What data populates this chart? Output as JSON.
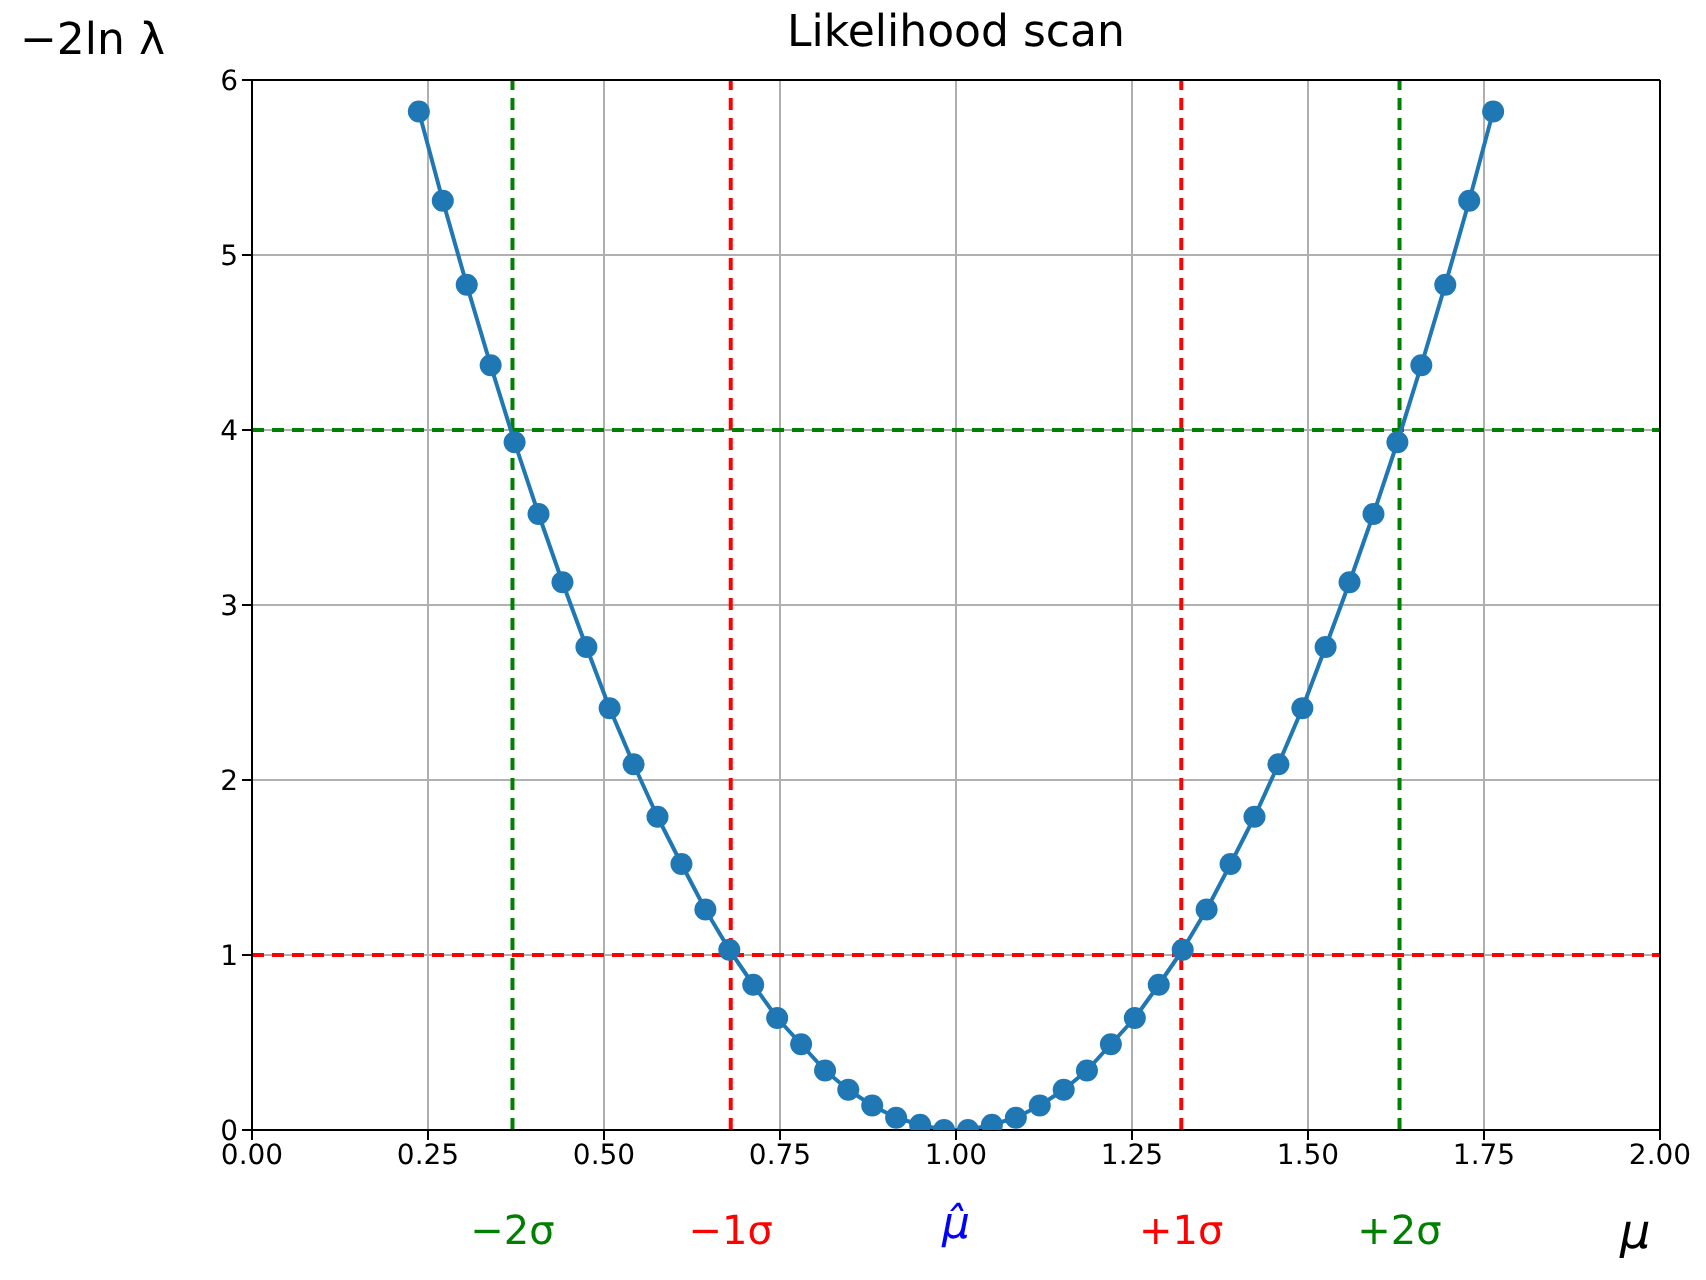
{
  "chart_data": {
    "type": "line",
    "title": "Likelihood scan",
    "xlabel": "μ",
    "ylabel": "−2ln λ",
    "x": [
      0.237,
      0.271,
      0.305,
      0.339,
      0.373,
      0.407,
      0.441,
      0.475,
      0.508,
      0.542,
      0.576,
      0.61,
      0.644,
      0.678,
      0.712,
      0.746,
      0.78,
      0.814,
      0.847,
      0.881,
      0.915,
      0.949,
      0.983,
      1.017,
      1.051,
      1.085,
      1.119,
      1.153,
      1.186,
      1.22,
      1.254,
      1.288,
      1.322,
      1.356,
      1.39,
      1.424,
      1.458,
      1.492,
      1.525,
      1.559,
      1.593,
      1.627,
      1.661,
      1.695,
      1.729,
      1.763
    ],
    "series": [
      {
        "color": "#1f77b4",
        "values": [
          5.82,
          5.31,
          4.83,
          4.37,
          3.93,
          3.52,
          3.13,
          2.76,
          2.41,
          2.09,
          1.79,
          1.52,
          1.26,
          1.03,
          0.83,
          0.64,
          0.49,
          0.34,
          0.23,
          0.14,
          0.07,
          0.03,
          0.0,
          0.0,
          0.03,
          0.07,
          0.14,
          0.23,
          0.34,
          0.49,
          0.64,
          0.83,
          1.03,
          1.26,
          1.52,
          1.79,
          2.09,
          2.41,
          2.76,
          3.13,
          3.52,
          3.93,
          4.37,
          4.83,
          5.31,
          5.82
        ]
      }
    ],
    "xlim": [
      0,
      2
    ],
    "xticks": [
      {
        "value": 0,
        "label": "0.00"
      },
      {
        "value": 0.25,
        "label": "0.25"
      },
      {
        "value": 0.5,
        "label": "0.50"
      },
      {
        "value": 0.75,
        "label": "0.75"
      },
      {
        "value": 1,
        "label": "1.00"
      },
      {
        "value": 1.25,
        "label": "1.25"
      },
      {
        "value": 1.5,
        "label": "1.50"
      },
      {
        "value": 1.75,
        "label": "1.75"
      },
      {
        "value": 2,
        "label": "2.00"
      }
    ],
    "ylim": [
      0,
      6
    ],
    "yticks": [
      0,
      1,
      2,
      3,
      4,
      5,
      6
    ],
    "ref_lines": [
      {
        "axis": "x",
        "value": 0.37,
        "label": "−2σ",
        "color": "#008000",
        "line_style": "dashed"
      },
      {
        "axis": "x",
        "value": 0.68,
        "label": "−1σ",
        "color": "#ff0000",
        "line_style": "dashed"
      },
      {
        "axis": "x",
        "value": 1.32,
        "label": "+1σ",
        "color": "#ff0000",
        "line_style": "dashed"
      },
      {
        "axis": "x",
        "value": 1.63,
        "label": "+2σ",
        "color": "#008000",
        "line_style": "dashed"
      },
      {
        "axis": "y",
        "value": 1,
        "color": "#ff0000",
        "line_style": "dashed"
      },
      {
        "axis": "y",
        "value": 4,
        "color": "#008000",
        "line_style": "dashed"
      }
    ],
    "annotations": [
      "μ̂"
    ],
    "grid": true,
    "marker": "circle",
    "line_style": "solid"
  }
}
